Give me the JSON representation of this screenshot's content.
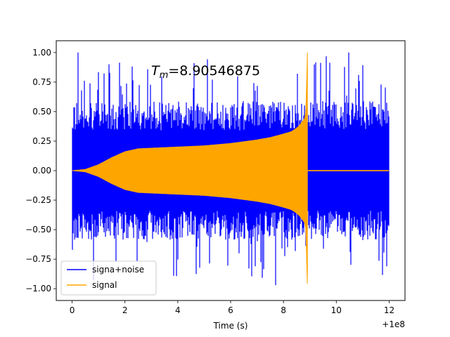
{
  "chart_data": {
    "type": "line",
    "title": "",
    "annotation": {
      "prefix": "T",
      "subscript": "m",
      "rest": "=8.90546875"
    },
    "xlabel": "Time (s)",
    "ylabel": "",
    "x_offset_label": "+1e8",
    "xlim": [
      -0.6,
      12.6
    ],
    "ylim": [
      -1.1,
      1.1
    ],
    "xticks": [
      0,
      2,
      4,
      6,
      8,
      10,
      12
    ],
    "xtick_labels": [
      "0",
      "2",
      "4",
      "6",
      "8",
      "10",
      "12"
    ],
    "yticks": [
      -1.0,
      -0.75,
      -0.5,
      -0.25,
      0.0,
      0.25,
      0.5,
      0.75,
      1.0
    ],
    "ytick_labels": [
      "−1.00",
      "−0.75",
      "−0.50",
      "−0.25",
      "0.00",
      "0.25",
      "0.50",
      "0.75",
      "1.00"
    ],
    "grid": false,
    "legend_position": "lower-left",
    "series": [
      {
        "name": "signa+noise",
        "color": "#0000ff",
        "style": "oscillation-band",
        "x_range": [
          0,
          12
        ],
        "approx_envelope": {
          "typical_amplitude": 0.55,
          "peak_range": [
            -1.0,
            1.0
          ]
        }
      },
      {
        "name": "signal",
        "color": "#ffa500",
        "style": "oscillation-band",
        "x_range": [
          0,
          12
        ],
        "peak_time": 8.9055,
        "envelope": {
          "x": [
            0,
            0.5,
            1,
            1.5,
            2,
            2.5,
            3,
            4,
            5,
            6,
            7,
            7.5,
            8,
            8.3,
            8.5,
            8.6,
            8.7,
            8.8,
            8.85,
            8.9055
          ],
          "amp": [
            0.0,
            0.01,
            0.05,
            0.11,
            0.16,
            0.185,
            0.19,
            0.2,
            0.21,
            0.23,
            0.26,
            0.28,
            0.31,
            0.33,
            0.36,
            0.38,
            0.41,
            0.44,
            0.5,
            1.0
          ]
        },
        "post_peak_amplitude": 0.005
      }
    ]
  }
}
